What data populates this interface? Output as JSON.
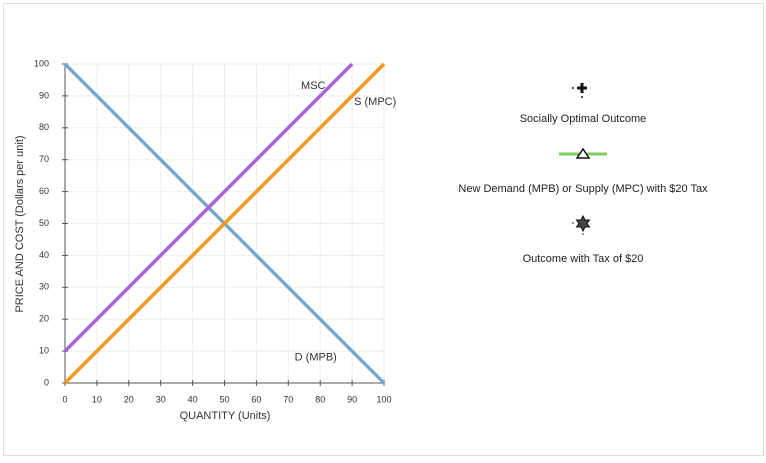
{
  "chart_data": {
    "type": "line",
    "x_label": "QUANTITY (Units)",
    "y_label": "PRICE AND COST (Dollars per unit)",
    "x": [
      0,
      90,
      100
    ],
    "series": [
      {
        "name": "D (MPB)",
        "color": "#7ba7cc",
        "values": [
          100,
          10,
          0
        ]
      },
      {
        "name": "S (MPC)",
        "color": "#f39a1e",
        "values": [
          0,
          90,
          100
        ]
      },
      {
        "name": "MSC",
        "color": "#a865d8",
        "values": [
          10,
          100,
          null
        ]
      }
    ],
    "xlim": [
      0,
      100
    ],
    "ylim": [
      0,
      100
    ],
    "xticks": [
      0,
      10,
      20,
      30,
      40,
      50,
      60,
      70,
      80,
      90,
      100
    ],
    "yticks": [
      0,
      10,
      20,
      30,
      40,
      50,
      60,
      70,
      80,
      90,
      100
    ],
    "grid": true,
    "tools": [
      {
        "label": "Socially Optimal Outcome"
      },
      {
        "label": "New Demand (MPB) or Supply (MPC) with $20 Tax"
      },
      {
        "label": "Outcome with Tax of $20"
      }
    ]
  }
}
